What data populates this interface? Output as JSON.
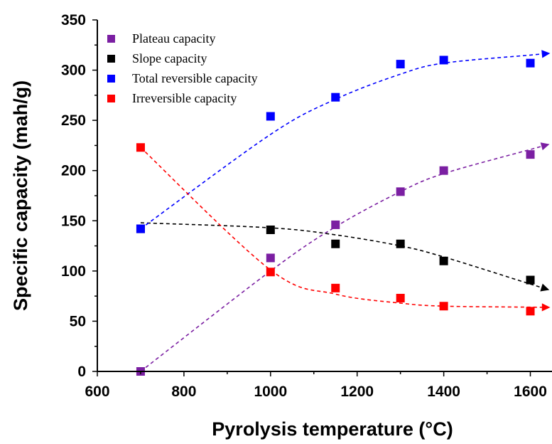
{
  "chart_data": {
    "type": "scatter",
    "title": "",
    "xlabel": "Pyrolysis temperature (°C)",
    "ylabel": "Specific capacity (mah/g)",
    "xlim": [
      600,
      1650
    ],
    "ylim": [
      0,
      350
    ],
    "x_ticks": [
      600,
      800,
      1000,
      1200,
      1400,
      1600
    ],
    "y_ticks": [
      0,
      50,
      100,
      150,
      200,
      250,
      300,
      350
    ],
    "x_tick_labels": [
      "600",
      "800",
      "1000",
      "1200",
      "1400",
      "1600"
    ],
    "y_tick_labels": [
      "0",
      "50",
      "100",
      "150",
      "200",
      "250",
      "300",
      "350"
    ],
    "grid": false,
    "legend_position": "top-left",
    "series": [
      {
        "name": "Plateau capacity",
        "color": "#7b1fa2",
        "marker": "square",
        "x": [
          700,
          1000,
          1150,
          1300,
          1400,
          1600
        ],
        "y": [
          0,
          113,
          146,
          179,
          200,
          216
        ],
        "trend_y": [
          0,
          100,
          144,
          179,
          197,
          221
        ]
      },
      {
        "name": "Slope capacity",
        "color": "#000000",
        "marker": "square",
        "x": [
          700,
          1000,
          1150,
          1300,
          1400,
          1600
        ],
        "y": [
          142,
          141,
          127,
          127,
          110,
          91
        ],
        "trend_y": [
          148,
          143,
          136,
          125,
          114,
          87
        ]
      },
      {
        "name": "Total reversible capacity",
        "color": "#0000ff",
        "marker": "square",
        "x": [
          700,
          1000,
          1150,
          1300,
          1400,
          1600
        ],
        "y": [
          142,
          254,
          273,
          306,
          310,
          307
        ],
        "trend_y": [
          142,
          236,
          271,
          296,
          307,
          315
        ]
      },
      {
        "name": "Irreversible capacity",
        "color": "#ff0000",
        "marker": "square",
        "x": [
          700,
          1000,
          1150,
          1300,
          1400,
          1600
        ],
        "y": [
          223,
          99,
          83,
          73,
          65,
          60
        ],
        "trend_y": [
          223,
          101,
          77,
          68,
          65,
          64
        ]
      }
    ]
  }
}
